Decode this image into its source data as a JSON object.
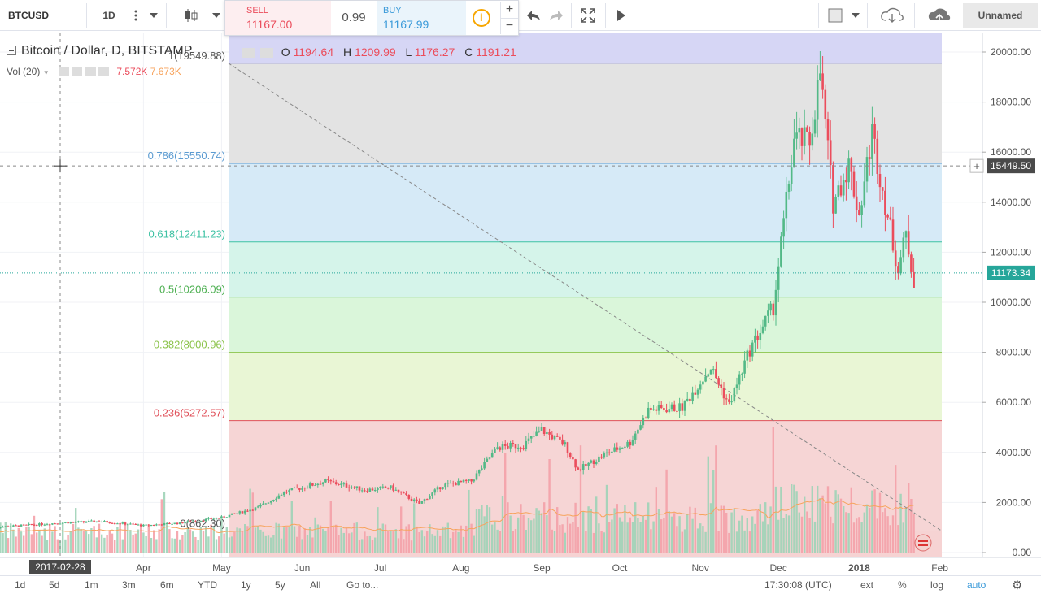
{
  "toolbar": {
    "symbol": "BTCUSD",
    "interval": "1D",
    "sell_label": "SELL",
    "sell_price": "11167.00",
    "spread": "0.99",
    "buy_label": "BUY",
    "buy_price": "11167.99",
    "layout_name": "Unnamed",
    "icons": [
      "more-vert-icon",
      "chevron-down-icon",
      "candles-icon",
      "info-icon",
      "plus-icon",
      "minus-icon",
      "undo-icon",
      "redo-icon",
      "fullscreen-icon",
      "play-icon",
      "square-icon",
      "cloud-download-icon",
      "cloud-upload-icon"
    ]
  },
  "legend": {
    "title": "Bitcoin / Dollar, D, BITSTAMP",
    "o_label": "O",
    "o_value": "1194.64",
    "h_label": "H",
    "h_value": "1209.99",
    "l_label": "L",
    "l_value": "1176.27",
    "c_label": "C",
    "c_value": "1191.21",
    "vol_label": "Vol (20)",
    "vol_value1": "7.572K",
    "vol_value2": "7.673K"
  },
  "crosshair": {
    "date_label": "2017-02-28",
    "price_label": "15449.50",
    "price": 15449.5
  },
  "last_price": {
    "label": "11173.34",
    "value": 11173.34
  },
  "colors": {
    "up": "#53b987",
    "down": "#eb4d5c",
    "vol_ma": "#f7a35c",
    "axis_text": "#555555"
  },
  "chart_data": {
    "type": "candlestick",
    "title": "Bitcoin / Dollar, D, BITSTAMP",
    "y_range": [
      0,
      20000
    ],
    "y_ticks": [
      "20000.00",
      "18000.00",
      "16000.00",
      "14000.00",
      "12000.00",
      "10000.00",
      "8000.00",
      "6000.00",
      "4000.00",
      "2000.00",
      "0.00"
    ],
    "x_ticks": [
      "Apr",
      "May",
      "Jun",
      "Jul",
      "Aug",
      "Sep",
      "Oct",
      "Nov",
      "Dec",
      "2018",
      "Feb"
    ],
    "fib_levels": [
      {
        "ratio": 1,
        "label": "1(19549.88)",
        "price": 19549.88,
        "color": "#9c9cd8",
        "fill": "#d6d6f5"
      },
      {
        "ratio": 0.786,
        "label": "0.786(15550.74)",
        "price": 15550.74,
        "color": "#5b9bd1",
        "fill": "#e2e2e2"
      },
      {
        "ratio": 0.618,
        "label": "0.618(12411.23)",
        "price": 12411.23,
        "color": "#3fc2a4",
        "fill": "#d4e9f7"
      },
      {
        "ratio": 0.5,
        "label": "0.5(10206.09)",
        "price": 10206.09,
        "color": "#4caf50",
        "fill": "#d3f3e9"
      },
      {
        "ratio": 0.382,
        "label": "0.382(8000.96)",
        "price": 8000.96,
        "color": "#8bc34a",
        "fill": "#d8f5d8"
      },
      {
        "ratio": 0.236,
        "label": "0.236(5272.57)",
        "price": 5272.57,
        "color": "#e0505a",
        "fill": "#e8f5d3"
      },
      {
        "ratio": 0,
        "label": "0(862.30)",
        "price": 862.3,
        "color": "#9e9e9e",
        "fill": "#f6d3d3"
      }
    ],
    "price_series": {
      "name": "BTCUSD",
      "points": [
        [
          "2017-02-01",
          1000
        ],
        [
          "2017-03-01",
          1190
        ],
        [
          "2017-03-15",
          1250
        ],
        [
          "2017-04-01",
          1080
        ],
        [
          "2017-04-15",
          1180
        ],
        [
          "2017-05-01",
          1400
        ],
        [
          "2017-05-15",
          1800
        ],
        [
          "2017-05-25",
          2400
        ],
        [
          "2017-06-10",
          2850
        ],
        [
          "2017-06-25",
          2500
        ],
        [
          "2017-07-05",
          2600
        ],
        [
          "2017-07-16",
          1950
        ],
        [
          "2017-07-25",
          2700
        ],
        [
          "2017-08-05",
          2850
        ],
        [
          "2017-08-15",
          4200
        ],
        [
          "2017-08-25",
          4300
        ],
        [
          "2017-09-01",
          4900
        ],
        [
          "2017-09-10",
          4300
        ],
        [
          "2017-09-15",
          3300
        ],
        [
          "2017-09-25",
          3900
        ],
        [
          "2017-10-05",
          4400
        ],
        [
          "2017-10-12",
          5700
        ],
        [
          "2017-10-25",
          5800
        ],
        [
          "2017-11-05",
          7400
        ],
        [
          "2017-11-12",
          5900
        ],
        [
          "2017-11-20",
          8100
        ],
        [
          "2017-11-29",
          9800
        ],
        [
          "2017-12-07",
          16500
        ],
        [
          "2017-12-13",
          16400
        ],
        [
          "2017-12-17",
          19200
        ],
        [
          "2017-12-22",
          14000
        ],
        [
          "2017-12-28",
          15500
        ],
        [
          "2018-01-01",
          13500
        ],
        [
          "2018-01-06",
          16800
        ],
        [
          "2018-01-10",
          14500
        ],
        [
          "2018-01-16",
          11300
        ],
        [
          "2018-01-19",
          12700
        ],
        [
          "2018-01-22",
          10900
        ]
      ]
    },
    "volume_series": {
      "name": "Vol (20)",
      "ma_name": "MA 20"
    }
  },
  "bottom": {
    "ranges": [
      "1d",
      "5d",
      "1m",
      "3m",
      "6m",
      "YTD",
      "1y",
      "5y",
      "All"
    ],
    "goto": "Go to...",
    "time": "17:30:08 (UTC)",
    "ext": "ext",
    "pct": "%",
    "log": "log",
    "auto": "auto"
  }
}
